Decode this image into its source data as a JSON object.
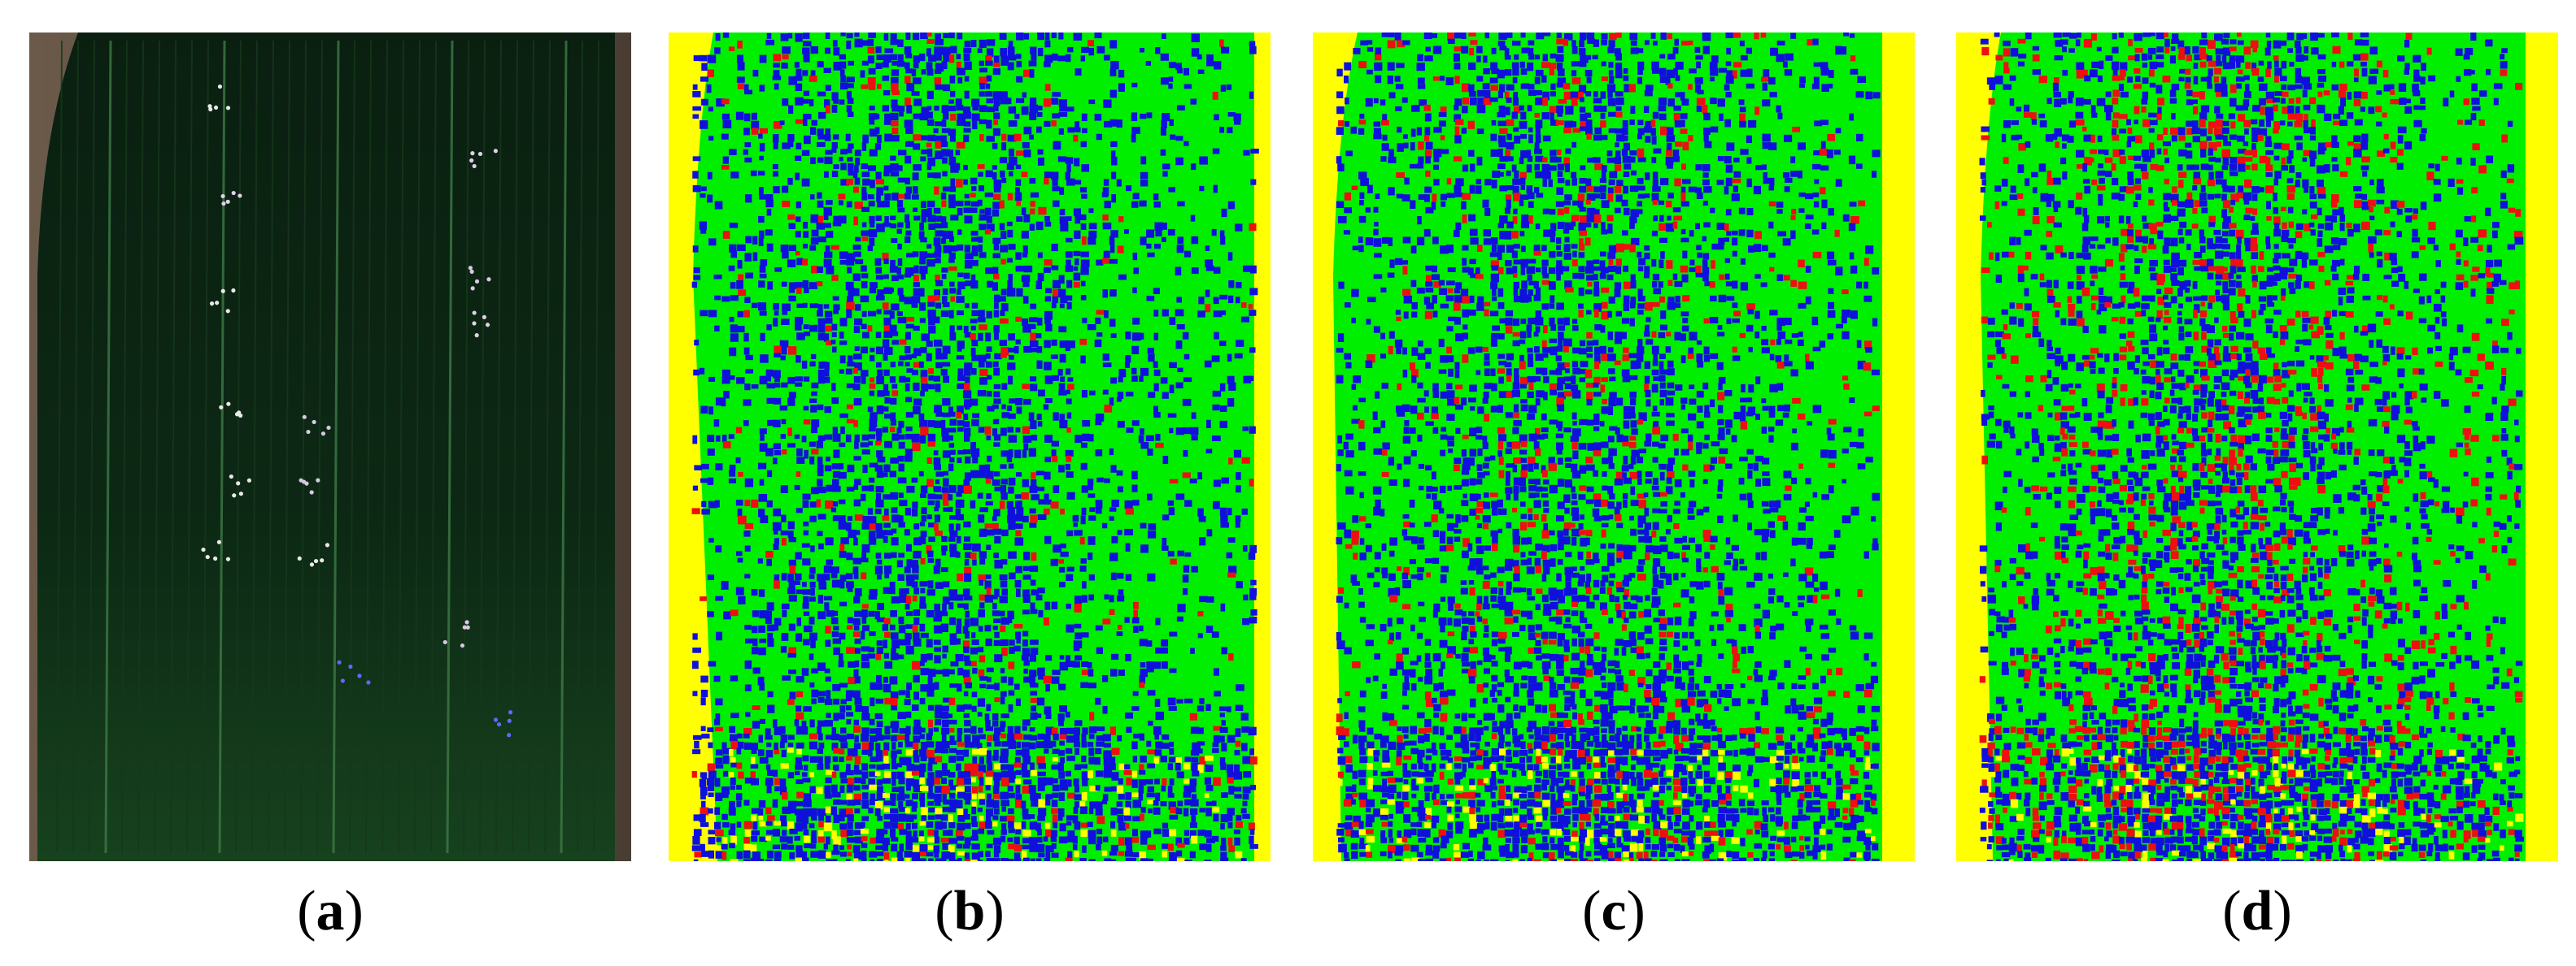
{
  "panels": [
    {
      "id": "a",
      "kind": "rgb-aerial-photo",
      "caption_letter": "a"
    },
    {
      "id": "b",
      "kind": "classification-map",
      "caption_letter": "b",
      "red_share": 0.1
    },
    {
      "id": "c",
      "kind": "classification-map",
      "caption_letter": "c",
      "red_share": 0.15
    },
    {
      "id": "d",
      "kind": "classification-map",
      "caption_letter": "d",
      "red_share": 0.28
    }
  ],
  "colors": {
    "background_class": "#ffff00",
    "class_green": "#00ee00",
    "class_blue": "#1010dd",
    "class_red": "#ee1010",
    "photo_field": "#0b2412",
    "photo_edge": "#6b5a4a"
  },
  "caption_punct": {
    "open": "(",
    "close": ")"
  }
}
